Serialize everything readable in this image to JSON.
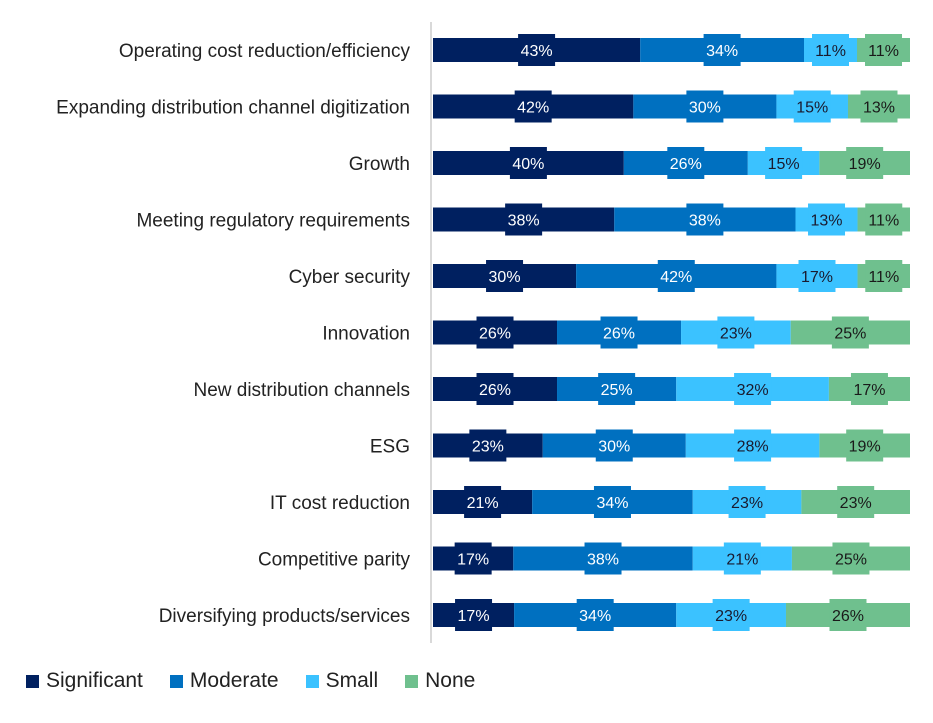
{
  "chart_data": {
    "type": "bar",
    "orientation": "horizontal",
    "stacked": true,
    "normalized": true,
    "title": "",
    "xlabel": "",
    "ylabel": "",
    "grid": false,
    "legend_position": "bottom-left",
    "categories": [
      "Operating cost reduction/efficiency",
      "Expanding distribution channel digitization",
      "Growth",
      "Meeting regulatory requirements",
      "Cyber security",
      "Innovation",
      "New distribution channels",
      "ESG",
      "IT cost reduction",
      "Competitive parity",
      "Diversifying products/services"
    ],
    "series": [
      {
        "name": "Significant",
        "color": "#002060",
        "label_color": "#ffffff",
        "values": [
          43,
          42,
          40,
          38,
          30,
          26,
          26,
          23,
          21,
          17,
          17
        ]
      },
      {
        "name": "Moderate",
        "color": "#0070C0",
        "label_color": "#ffffff",
        "values": [
          34,
          30,
          26,
          38,
          42,
          26,
          25,
          30,
          34,
          38,
          34
        ]
      },
      {
        "name": "Small",
        "color": "#3BC2FF",
        "label_color": "#1a1a2e",
        "values": [
          11,
          15,
          15,
          13,
          17,
          23,
          32,
          28,
          23,
          21,
          23
        ]
      },
      {
        "name": "None",
        "color": "#6FC08E",
        "label_color": "#1a1a1a",
        "values": [
          11,
          13,
          19,
          11,
          11,
          25,
          17,
          19,
          23,
          25,
          26
        ]
      }
    ],
    "value_suffix": "%"
  }
}
